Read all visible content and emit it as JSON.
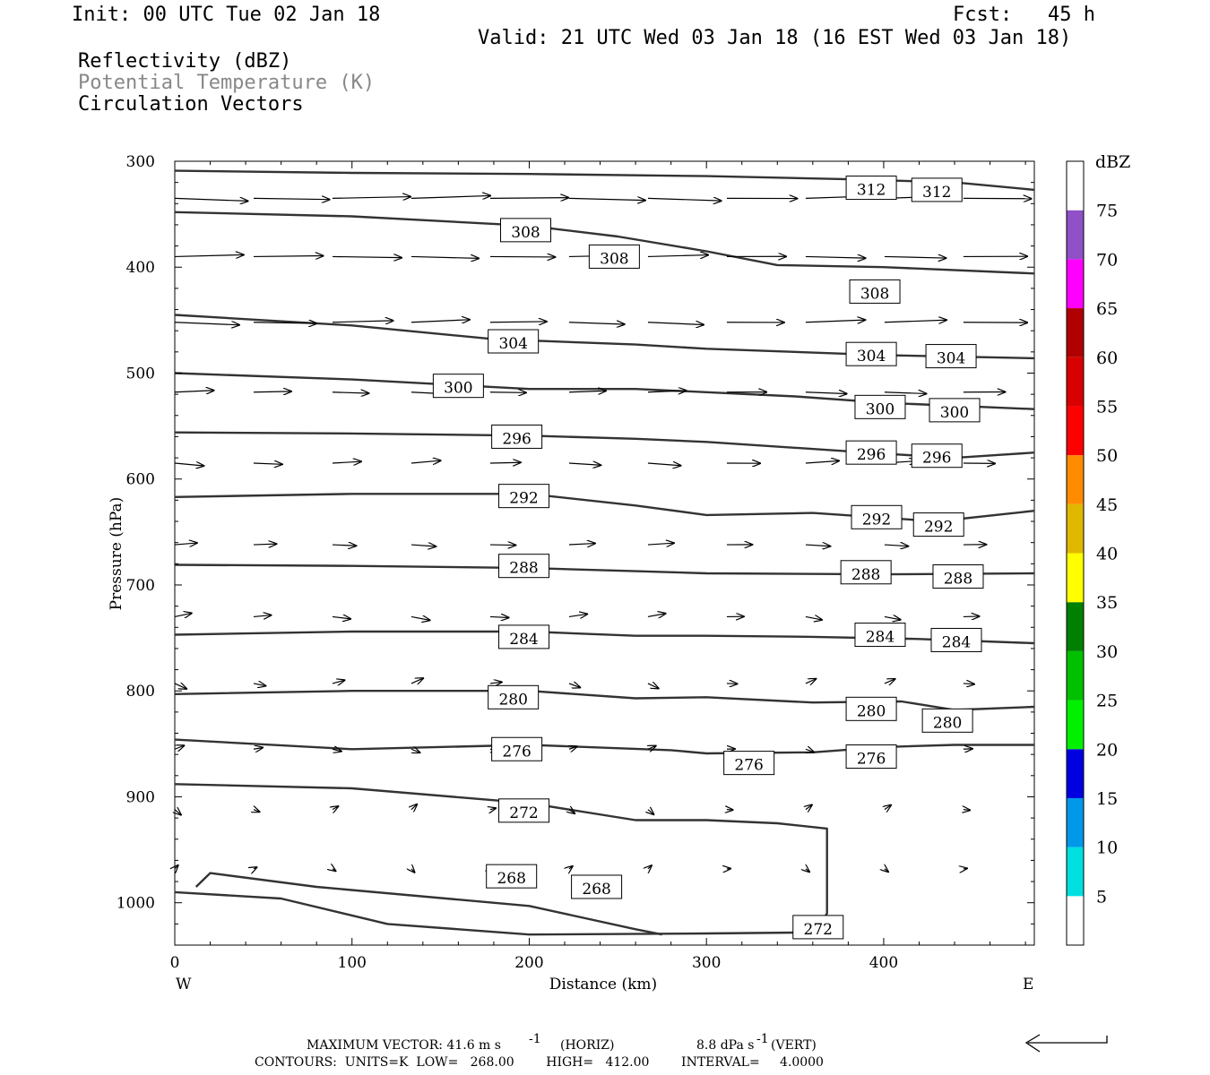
{
  "header": {
    "init": "Init: 00 UTC Tue 02 Jan 18",
    "fcst": "Fcst:   45 h",
    "valid": "Valid: 21 UTC Wed 03 Jan 18 (16 EST Wed 03 Jan 18)",
    "field1": "Reflectivity (dBZ)",
    "field2": "Potential Temperature (K)",
    "field3": "Circulation Vectors"
  },
  "chart_data": {
    "type": "cross-section",
    "xlabel": "Distance (km)",
    "ylabel": "Pressure (hPa)",
    "xlim": [
      0,
      485
    ],
    "ylim": [
      300,
      1040
    ],
    "x_ticks": [
      0,
      100,
      200,
      300,
      400
    ],
    "y_ticks": [
      300,
      400,
      500,
      600,
      700,
      800,
      900,
      1000
    ],
    "x_end_labels": {
      "left": "W",
      "right": "E"
    },
    "colorbar": {
      "title": "dBZ",
      "bins": [
        {
          "label": "",
          "color": "#ffffff"
        },
        {
          "label": "5",
          "color": "#00e0e0"
        },
        {
          "label": "10",
          "color": "#0098e8"
        },
        {
          "label": "15",
          "color": "#0000e0"
        },
        {
          "label": "20",
          "color": "#00f000"
        },
        {
          "label": "25",
          "color": "#00c000"
        },
        {
          "label": "30",
          "color": "#008000"
        },
        {
          "label": "35",
          "color": "#ffff00"
        },
        {
          "label": "40",
          "color": "#e0b800"
        },
        {
          "label": "45",
          "color": "#ff8c00"
        },
        {
          "label": "50",
          "color": "#ff0000"
        },
        {
          "label": "55",
          "color": "#d80000"
        },
        {
          "label": "60",
          "color": "#b00000"
        },
        {
          "label": "65",
          "color": "#ff00ff"
        },
        {
          "label": "70",
          "color": "#9050c8"
        },
        {
          "label": "75",
          "color": "#ffffff"
        }
      ]
    },
    "theta_contours": [
      {
        "level": 312,
        "points": [
          [
            0,
            309
          ],
          [
            100,
            311
          ],
          [
            200,
            312
          ],
          [
            300,
            314
          ],
          [
            380,
            317
          ],
          [
            440,
            320
          ],
          [
            485,
            327
          ]
        ],
        "labels": [
          [
            393,
            325
          ],
          [
            430,
            327
          ]
        ]
      },
      {
        "level": 308,
        "points": [
          [
            0,
            348
          ],
          [
            100,
            352
          ],
          [
            200,
            361
          ],
          [
            250,
            371
          ],
          [
            300,
            385
          ],
          [
            340,
            398
          ],
          [
            400,
            400
          ],
          [
            485,
            406
          ]
        ],
        "labels": [
          [
            198,
            365
          ],
          [
            248,
            390
          ],
          [
            395,
            423
          ]
        ]
      },
      {
        "level": 304,
        "points": [
          [
            0,
            445
          ],
          [
            100,
            455
          ],
          [
            180,
            468
          ],
          [
            260,
            473
          ],
          [
            300,
            477
          ],
          [
            400,
            483
          ],
          [
            485,
            486
          ]
        ],
        "labels": [
          [
            191,
            470
          ],
          [
            393,
            482
          ],
          [
            438,
            484
          ]
        ]
      },
      {
        "level": 300,
        "points": [
          [
            0,
            500
          ],
          [
            100,
            506
          ],
          [
            200,
            515
          ],
          [
            260,
            515
          ],
          [
            300,
            518
          ],
          [
            350,
            522
          ],
          [
            400,
            528
          ],
          [
            485,
            534
          ]
        ],
        "labels": [
          [
            160,
            512
          ],
          [
            398,
            532
          ],
          [
            440,
            535
          ]
        ]
      },
      {
        "level": 296,
        "points": [
          [
            0,
            556
          ],
          [
            100,
            557
          ],
          [
            200,
            559
          ],
          [
            260,
            562
          ],
          [
            300,
            565
          ],
          [
            400,
            576
          ],
          [
            440,
            580
          ],
          [
            485,
            575
          ]
        ],
        "labels": [
          [
            193,
            560
          ],
          [
            393,
            575
          ],
          [
            430,
            578
          ]
        ]
      },
      {
        "level": 292,
        "points": [
          [
            0,
            617
          ],
          [
            100,
            614
          ],
          [
            200,
            614
          ],
          [
            260,
            625
          ],
          [
            300,
            634
          ],
          [
            360,
            632
          ],
          [
            430,
            640
          ],
          [
            485,
            630
          ]
        ],
        "labels": [
          [
            197,
            616
          ],
          [
            396,
            636
          ],
          [
            431,
            643
          ]
        ]
      },
      {
        "level": 288,
        "points": [
          [
            0,
            681
          ],
          [
            100,
            682
          ],
          [
            200,
            684
          ],
          [
            260,
            687
          ],
          [
            300,
            689
          ],
          [
            400,
            690
          ],
          [
            485,
            689
          ]
        ],
        "labels": [
          [
            197,
            682
          ],
          [
            390,
            688
          ],
          [
            442,
            692
          ]
        ]
      },
      {
        "level": 284,
        "points": [
          [
            0,
            747
          ],
          [
            100,
            744
          ],
          [
            200,
            744
          ],
          [
            260,
            748
          ],
          [
            300,
            748
          ],
          [
            360,
            749
          ],
          [
            420,
            751
          ],
          [
            485,
            755
          ]
        ],
        "labels": [
          [
            197,
            749
          ],
          [
            398,
            747
          ],
          [
            441,
            752
          ]
        ]
      },
      {
        "level": 280,
        "points": [
          [
            0,
            803
          ],
          [
            100,
            800
          ],
          [
            200,
            800
          ],
          [
            260,
            807
          ],
          [
            300,
            806
          ],
          [
            360,
            811
          ],
          [
            410,
            810
          ],
          [
            440,
            818
          ],
          [
            485,
            815
          ]
        ],
        "labels": [
          [
            191,
            806
          ],
          [
            393,
            817
          ],
          [
            436,
            828
          ]
        ]
      },
      {
        "level": 276,
        "points": [
          [
            0,
            846
          ],
          [
            100,
            855
          ],
          [
            200,
            851
          ],
          [
            280,
            856
          ],
          [
            300,
            859
          ],
          [
            360,
            858
          ],
          [
            400,
            853
          ],
          [
            440,
            851
          ],
          [
            485,
            851
          ]
        ],
        "labels": [
          [
            193,
            855
          ],
          [
            324,
            868
          ],
          [
            393,
            862
          ]
        ]
      },
      {
        "level": 272,
        "points": [
          [
            0,
            888
          ],
          [
            100,
            892
          ],
          [
            200,
            906
          ],
          [
            260,
            922
          ],
          [
            300,
            922
          ],
          [
            340,
            925
          ],
          [
            368,
            930
          ],
          [
            368,
            1010
          ],
          [
            362,
            1028
          ],
          [
            300,
            1029
          ],
          [
            200,
            1030
          ],
          [
            120,
            1020
          ],
          [
            60,
            996
          ],
          [
            0,
            990
          ]
        ],
        "labels": [
          [
            197,
            913
          ],
          [
            363,
            1023
          ]
        ]
      },
      {
        "level": 268,
        "points": [
          [
            12,
            985
          ],
          [
            20,
            972
          ],
          [
            80,
            985
          ],
          [
            160,
            997
          ],
          [
            200,
            1003
          ],
          [
            260,
            1025
          ],
          [
            275,
            1030
          ]
        ],
        "labels": [
          [
            190,
            975
          ],
          [
            238,
            985
          ]
        ]
      }
    ],
    "vector_rows": [
      {
        "p": 335,
        "dx": 0.085,
        "dy": 0.0
      },
      {
        "p": 390,
        "dx": 0.075,
        "dy": 0.0
      },
      {
        "p": 452,
        "dx": 0.07,
        "dy": 0.0
      },
      {
        "p": 518,
        "dx": 0.045,
        "dy": 0.0
      },
      {
        "p": 585,
        "dx": 0.036,
        "dy": 0.0
      },
      {
        "p": 662,
        "dx": 0.028,
        "dy": 0.0
      },
      {
        "p": 730,
        "dx": 0.02,
        "dy": 0.0
      },
      {
        "p": 793,
        "dx": 0.013,
        "dy": 0.0
      },
      {
        "p": 855,
        "dx": 0.01,
        "dy": 0.0
      },
      {
        "p": 912,
        "dx": 0.007,
        "dy": 0.0
      },
      {
        "p": 968,
        "dx": 0.004,
        "dy": 0.0
      }
    ],
    "footer": {
      "max_vector": "MAXIMUM VECTOR:  41.6 m s",
      "horiz": "(HORIZ)",
      "vert": "8.8 dPa s",
      "vert_tail": "(VERT)",
      "contours": "CONTOURS:  UNITS=K  LOW=   268.00        HIGH=   412.00        INTERVAL=     4.0000"
    }
  }
}
